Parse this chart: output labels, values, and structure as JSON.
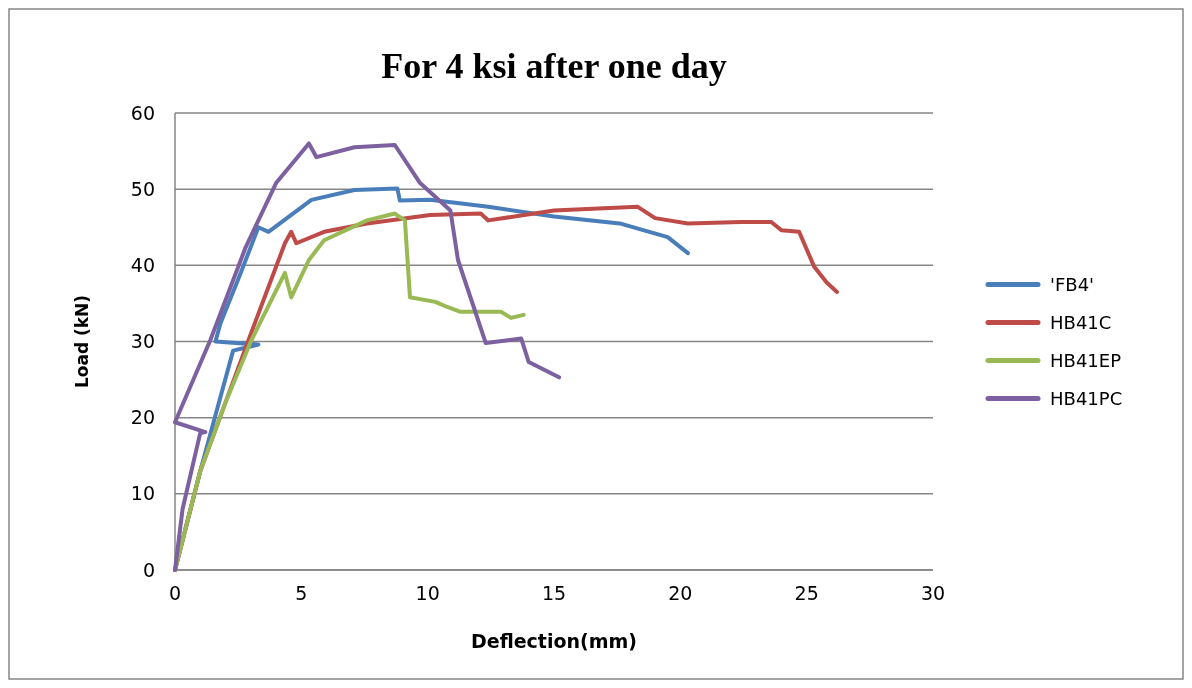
{
  "chart_data": {
    "type": "line",
    "title": "For 4 ksi after one day",
    "xlabel": "Deflection(mm)",
    "ylabel": "Load (kN)",
    "xlim": [
      0,
      30
    ],
    "xticks": [
      0,
      5,
      10,
      15,
      20,
      25,
      30
    ],
    "ylim": [
      0,
      60
    ],
    "yticks": [
      0,
      10,
      20,
      30,
      40,
      50,
      60
    ],
    "grid": "y",
    "legend": "right",
    "marker": "none",
    "line_style": "solid",
    "series": [
      {
        "name": "'FB4'",
        "color": "#4a7ebb",
        "x": [
          0,
          1,
          2.3,
          3.3,
          1.6,
          1.8,
          2.6,
          3.3,
          3.7,
          5.4,
          7.1,
          8.8,
          8.9,
          10.1,
          12.4,
          15,
          17.6,
          19.5,
          20.3
        ],
        "values": [
          0,
          13,
          28.8,
          29.6,
          30,
          32.4,
          39,
          45,
          44.4,
          48.6,
          49.9,
          50.1,
          48.5,
          48.6,
          47.7,
          46.4,
          45.5,
          43.7,
          41.6
        ]
      },
      {
        "name": "HB41C",
        "color": "#be4b48",
        "x": [
          0,
          1,
          2,
          3,
          4.35,
          4.6,
          4.8,
          5.9,
          7.6,
          10.1,
          12.1,
          12.4,
          15,
          18.3,
          19,
          20.3,
          22.4,
          23.6,
          24,
          24.7,
          25.3,
          25.8,
          26.2
        ],
        "values": [
          0,
          13,
          22,
          31,
          42.9,
          44.4,
          42.9,
          44.4,
          45.5,
          46.6,
          46.8,
          45.9,
          47.2,
          47.7,
          46.2,
          45.5,
          45.7,
          45.7,
          44.6,
          44.4,
          39.8,
          37.7,
          36.5
        ]
      },
      {
        "name": "HB41EP",
        "color": "#98b954",
        "x": [
          0,
          1,
          2,
          3,
          4.35,
          4.6,
          5.3,
          5.9,
          7.6,
          8.7,
          9.1,
          9.3,
          10.3,
          10.8,
          11.3,
          12.9,
          13.3,
          13.8
        ],
        "values": [
          0,
          13,
          22,
          30,
          39,
          35.8,
          40.7,
          43.3,
          45.9,
          46.8,
          45.9,
          35.8,
          35.2,
          34.5,
          33.9,
          33.9,
          33.1,
          33.5
        ]
      },
      {
        "name": "HB41PC",
        "color": "#7d60a0",
        "x": [
          0,
          0.3,
          1,
          1.2,
          0,
          1.4,
          2.8,
          4,
          5.3,
          5.6,
          7.1,
          8.7,
          9.7,
          10.9,
          11.2,
          12.3,
          13.7,
          14,
          15.2
        ],
        "values": [
          0,
          8,
          18,
          18.1,
          19.4,
          30.2,
          42.4,
          50.8,
          56,
          54.2,
          55.5,
          55.8,
          50.8,
          47.2,
          40.7,
          29.8,
          30.4,
          27.3,
          25.3
        ]
      }
    ]
  }
}
